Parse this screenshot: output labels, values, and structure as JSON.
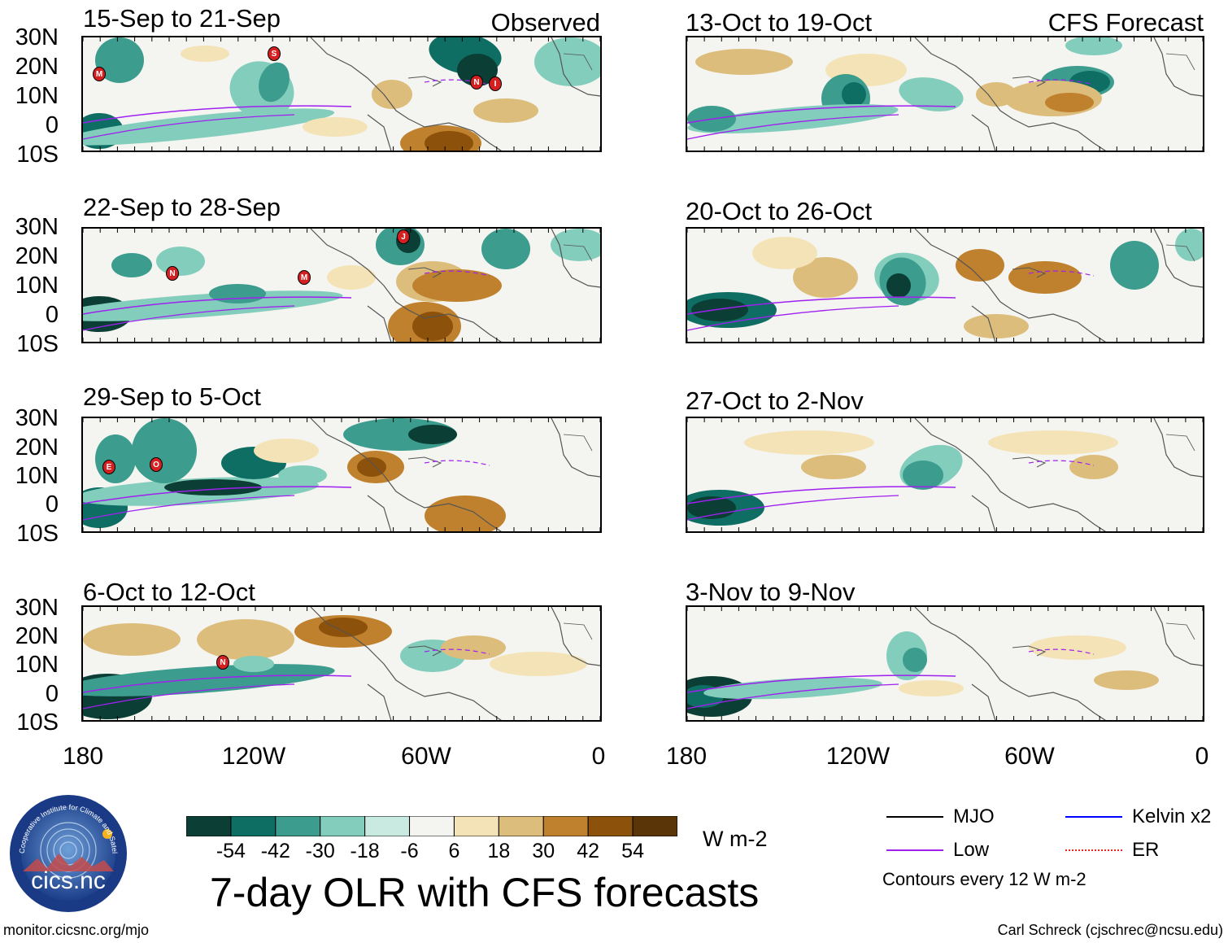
{
  "panels": [
    {
      "title": "15-Sep to 21-Sep",
      "tag": "Observed"
    },
    {
      "title": "13-Oct to 19-Oct",
      "tag": "CFS Forecast"
    },
    {
      "title": "22-Sep to 28-Sep",
      "tag": ""
    },
    {
      "title": "20-Oct to 26-Oct",
      "tag": ""
    },
    {
      "title": "29-Sep to 5-Oct",
      "tag": ""
    },
    {
      "title": "27-Oct to 2-Nov",
      "tag": ""
    },
    {
      "title": "6-Oct to 12-Oct",
      "tag": ""
    },
    {
      "title": "3-Nov to 9-Nov",
      "tag": ""
    }
  ],
  "lat_labels": [
    "30N",
    "20N",
    "10N",
    "0",
    "10S"
  ],
  "lon_labels": [
    "180",
    "120W",
    "60W",
    "0"
  ],
  "storm_markers": [
    {
      "panel": 0,
      "label": "M"
    },
    {
      "panel": 0,
      "label": "S"
    },
    {
      "panel": 0,
      "label": "N"
    },
    {
      "panel": 0,
      "label": "I"
    },
    {
      "panel": 2,
      "label": "N"
    },
    {
      "panel": 2,
      "label": "M"
    },
    {
      "panel": 2,
      "label": "J"
    },
    {
      "panel": 4,
      "label": "E"
    },
    {
      "panel": 4,
      "label": "O"
    },
    {
      "panel": 6,
      "label": "N"
    }
  ],
  "colorbar": {
    "labels": [
      "-54",
      "-42",
      "-30",
      "-18",
      "-6",
      "6",
      "18",
      "30",
      "42",
      "54"
    ],
    "colors": [
      "#0b3f36",
      "#0e6e63",
      "#3c9c8d",
      "#82cdbb",
      "#c9eae0",
      "#f4f4f0",
      "#f4e3b6",
      "#dcbd7c",
      "#bf812d",
      "#8c510a",
      "#5a3507"
    ],
    "units": "W m-2"
  },
  "main_title": "7-day OLR with CFS forecasts",
  "legend": {
    "items": [
      {
        "label": "MJO",
        "color": "#000000",
        "style": "solid"
      },
      {
        "label": "Kelvin x2",
        "color": "#0000ff",
        "style": "solid"
      },
      {
        "label": "Low",
        "color": "#a020f0",
        "style": "solid"
      },
      {
        "label": "ER",
        "color": "#e8231e",
        "style": "dotted"
      }
    ],
    "note": "Contours every 12 W m-2"
  },
  "logo": {
    "text": "cics.nc",
    "ring_text": "Cooperative Institute for Climate and Satellites"
  },
  "footer": {
    "left": "monitor.cicsnc.org/mjo",
    "right": "Carl Schreck (cjschrec@ncsu.edu)"
  }
}
